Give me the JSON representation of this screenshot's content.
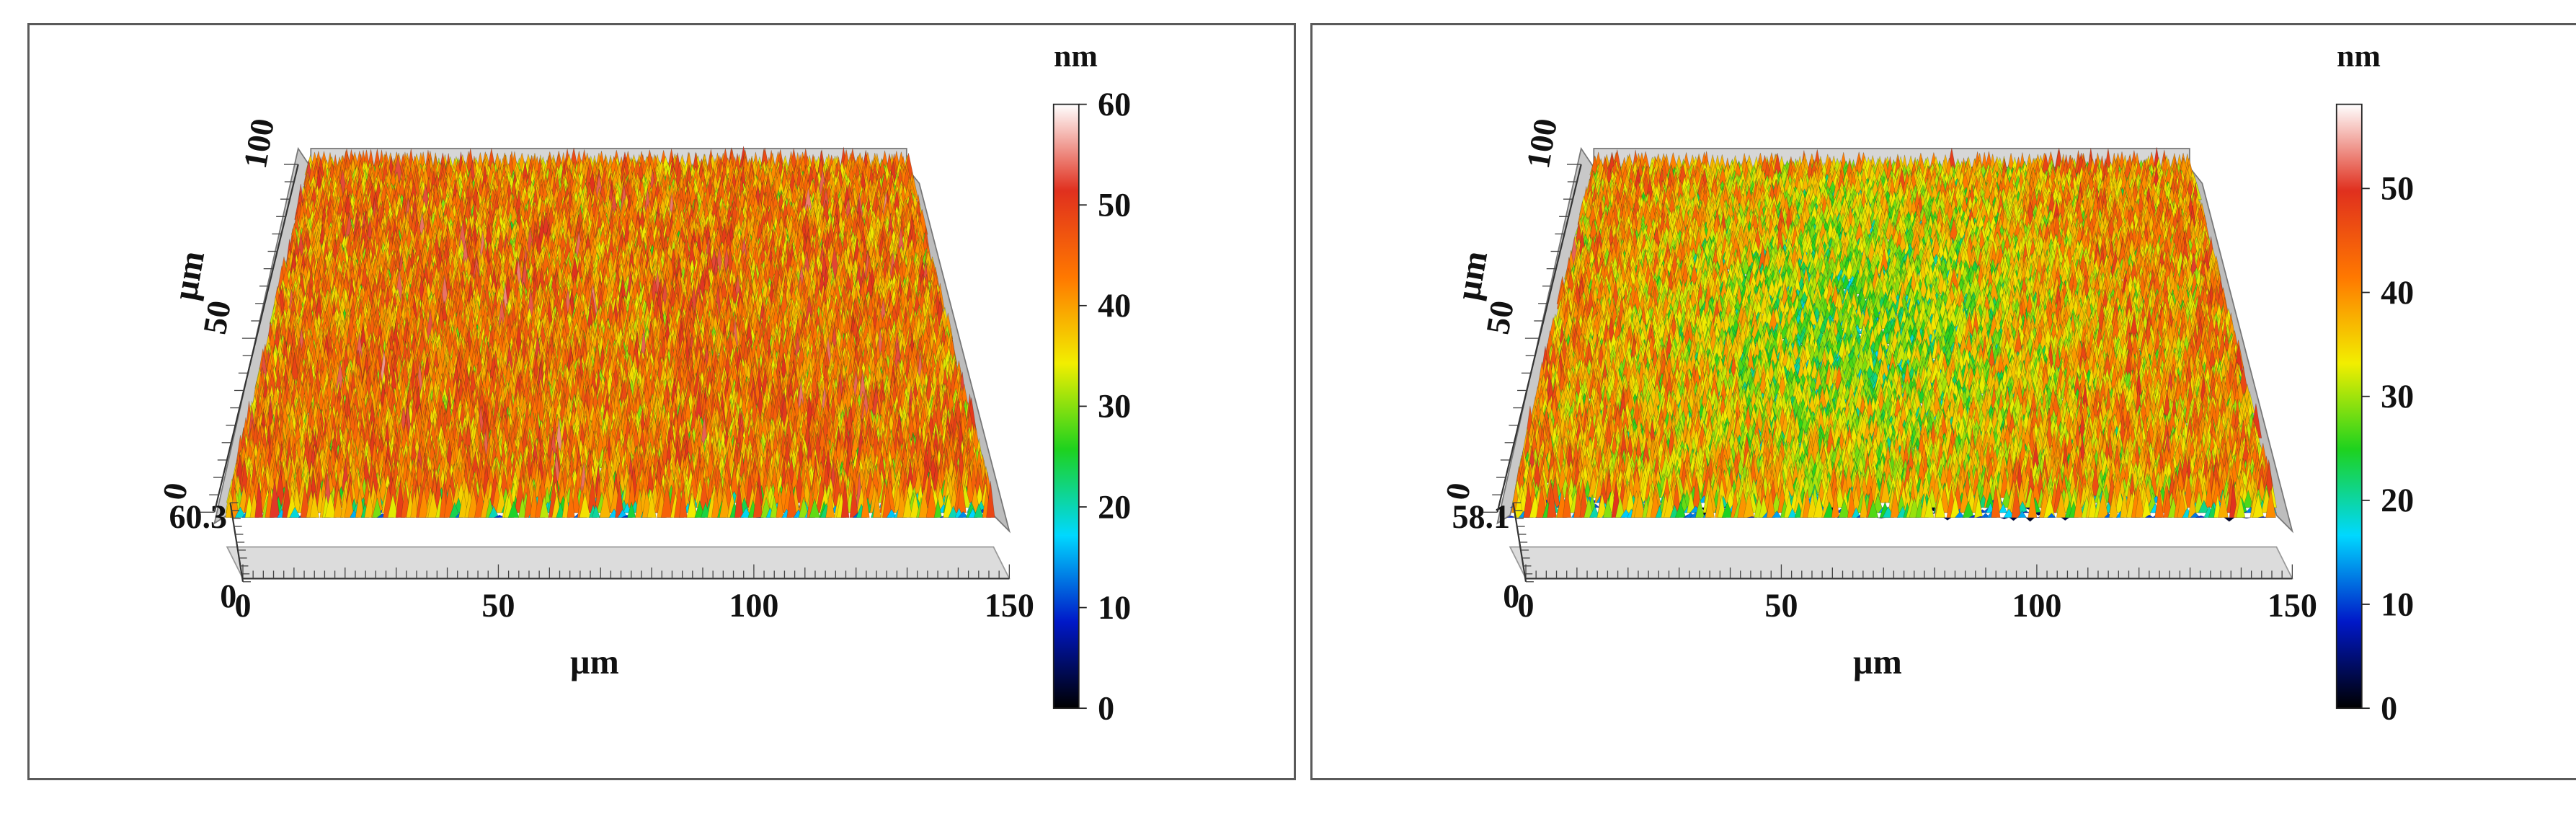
{
  "figure_title": "",
  "chart_data": [
    {
      "type": "3d-surface",
      "title": "",
      "x_label": "µm",
      "y_label": "µm",
      "z_label": "",
      "x_ticks": [
        "0",
        "50",
        "100",
        "150"
      ],
      "x_range": [
        0,
        150
      ],
      "y_ticks": [
        "0",
        "50",
        "100"
      ],
      "y_range": [
        0,
        100
      ],
      "z_ticks": [
        "0",
        "60.3"
      ],
      "z_range": [
        0,
        60.3
      ],
      "colorbar": {
        "unit": "nm",
        "range": [
          0,
          60
        ],
        "ticks": [
          "0",
          "10",
          "20",
          "30",
          "40",
          "50",
          "60"
        ],
        "colors": [
          "#000000",
          "#0018c8",
          "#00d8ff",
          "#1ed21e",
          "#f2ee00",
          "#ff7800",
          "#e0301e",
          "#ffffff"
        ]
      },
      "surface": {
        "mean_height_nm": 40,
        "spread_nm": 9,
        "center_dip_nm": 0
      }
    },
    {
      "type": "3d-surface",
      "title": "",
      "x_label": "µm",
      "y_label": "µm",
      "z_label": "",
      "x_ticks": [
        "0",
        "50",
        "100",
        "150"
      ],
      "x_range": [
        0,
        150
      ],
      "y_ticks": [
        "0",
        "50",
        "100"
      ],
      "y_range": [
        0,
        100
      ],
      "z_ticks": [
        "0",
        "58.1"
      ],
      "z_range": [
        0,
        58.1
      ],
      "colorbar": {
        "unit": "nm",
        "range": [
          0,
          58.1
        ],
        "ticks": [
          "0",
          "10",
          "20",
          "30",
          "40",
          "50"
        ],
        "colors": [
          "#000000",
          "#0018c8",
          "#00d8ff",
          "#1ed21e",
          "#f2ee00",
          "#ff7800",
          "#e0301e",
          "#ffffff"
        ]
      },
      "surface": {
        "mean_height_nm": 37,
        "spread_nm": 9,
        "center_dip_nm": 11
      }
    }
  ]
}
